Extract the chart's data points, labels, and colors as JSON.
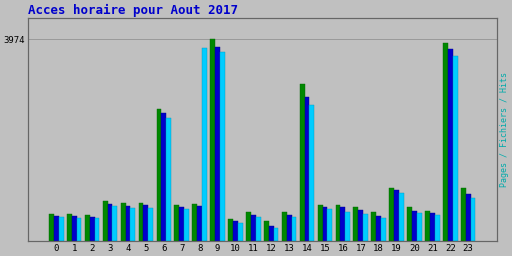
{
  "title": "Acces horaire pour Aout 2017",
  "title_color": "#0000cc",
  "title_fontsize": 9,
  "ylabel_right": "Pages / Fichiers / Hits",
  "ylabel_right_color": "#00aaaa",
  "hours": [
    0,
    1,
    2,
    3,
    4,
    5,
    6,
    7,
    8,
    9,
    10,
    11,
    12,
    13,
    14,
    15,
    16,
    17,
    18,
    19,
    20,
    21,
    22,
    23
  ],
  "pages": [
    530,
    530,
    510,
    780,
    740,
    740,
    2600,
    700,
    720,
    3974,
    430,
    560,
    380,
    560,
    3100,
    710,
    710,
    660,
    560,
    1050,
    660,
    590,
    3900,
    1050
  ],
  "fichiers": [
    490,
    480,
    470,
    730,
    690,
    700,
    2530,
    660,
    680,
    3820,
    380,
    510,
    290,
    510,
    2830,
    660,
    660,
    610,
    490,
    1000,
    580,
    540,
    3780,
    920
  ],
  "hits": [
    460,
    440,
    440,
    680,
    650,
    650,
    2430,
    620,
    3800,
    3730,
    360,
    470,
    250,
    470,
    2680,
    620,
    570,
    530,
    440,
    950,
    540,
    500,
    3650,
    850
  ],
  "color_pages": "#008800",
  "color_fichiers": "#0000cc",
  "color_hits": "#00ccff",
  "bg_color": "#c0c0c0",
  "plot_bg_color": "#c0c0c0",
  "ylim": [
    0,
    4400
  ],
  "ytick_value": 3974,
  "ytick_label": "3974",
  "grid_color": "#999999",
  "bar_width": 0.27
}
